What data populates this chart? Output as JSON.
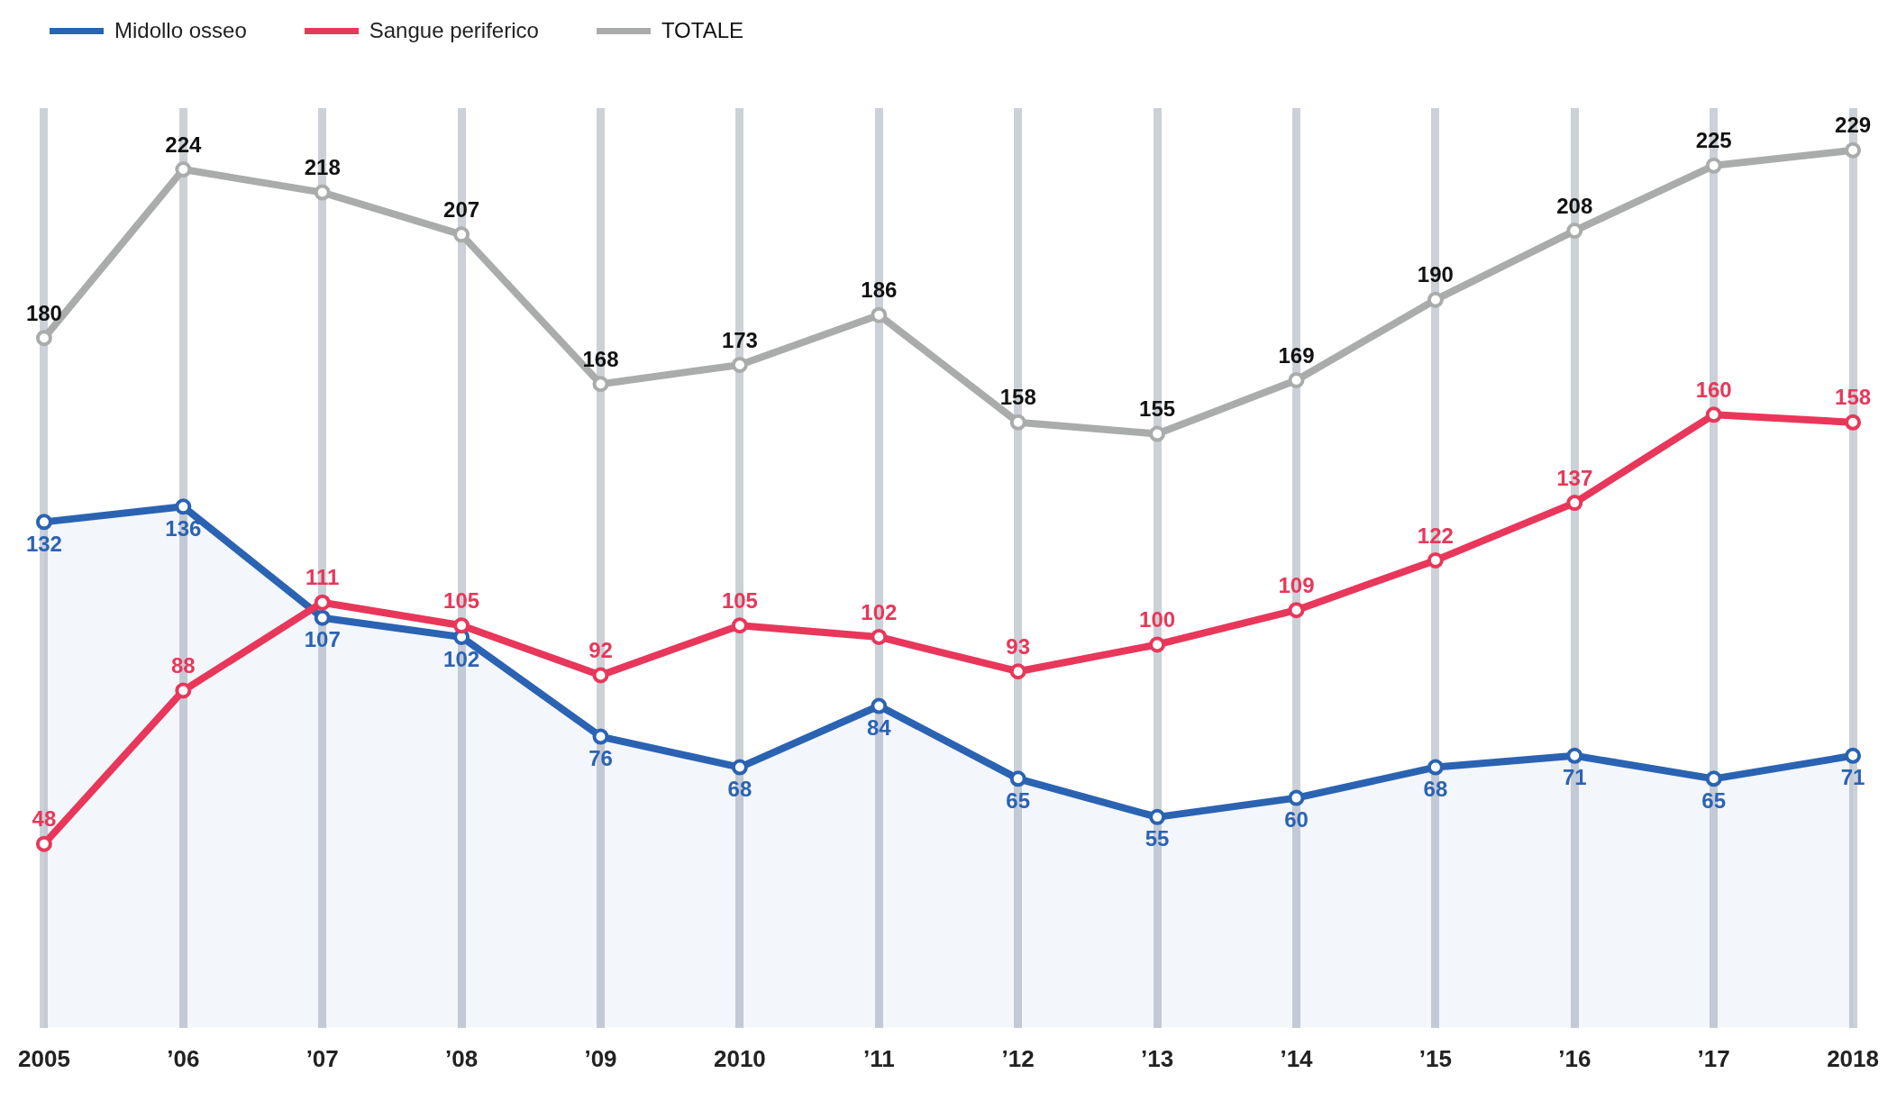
{
  "chart_data": {
    "type": "line",
    "categories": [
      "2005",
      "’06",
      "’07",
      "’08",
      "’09",
      "2010",
      "’11",
      "’12",
      "’13",
      "’14",
      "’15",
      "’16",
      "’17",
      "2018"
    ],
    "series": [
      {
        "name": "Midollo osseo",
        "color": "#2b63b3",
        "type": "area",
        "values": [
          132,
          136,
          107,
          102,
          76,
          68,
          84,
          65,
          55,
          60,
          68,
          71,
          65,
          71
        ]
      },
      {
        "name": "Sangue periferico",
        "color": "#e8375a",
        "values": [
          48,
          88,
          111,
          105,
          92,
          105,
          102,
          93,
          100,
          109,
          122,
          137,
          160,
          158
        ]
      },
      {
        "name": "TOTALE",
        "color": "#a9acab",
        "values": [
          180,
          224,
          218,
          207,
          168,
          173,
          186,
          158,
          155,
          169,
          190,
          208,
          225,
          229
        ]
      }
    ],
    "ylim": [
      0,
      240
    ],
    "grid": "x",
    "legend": "top left",
    "marker": "circle",
    "data_labels": true,
    "tick_labels": "x"
  }
}
